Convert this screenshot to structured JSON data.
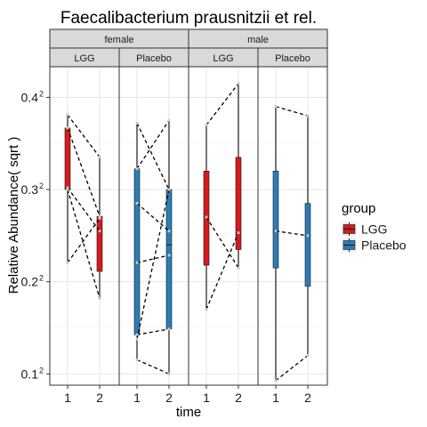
{
  "chart_data": {
    "type": "box",
    "title": "Faecalibacterium prausnitzii et rel.",
    "xlabel": "time",
    "ylabel": "Relative Abundance( sqrt )",
    "y_scale": "sqrt",
    "ylim": [
      0.0077,
      0.1877
    ],
    "y_ticks": [
      0.01,
      0.04,
      0.09,
      0.16
    ],
    "y_tick_labels": [
      {
        "base": "0.1",
        "exp": "2"
      },
      {
        "base": "0.2",
        "exp": "2"
      },
      {
        "base": "0.3",
        "exp": "2"
      },
      {
        "base": "0.4",
        "exp": "2"
      }
    ],
    "x_categories": [
      "1",
      "2"
    ],
    "grid": true,
    "legend": {
      "title": "group",
      "position": "right",
      "items": [
        {
          "label": "LGG",
          "color": "#d7191c"
        },
        {
          "label": "Placebo",
          "color": "#2c7bb6"
        }
      ]
    },
    "facet_top": [
      "female",
      "male"
    ],
    "facet_second": [
      "LGG",
      "Placebo",
      "LGG",
      "Placebo"
    ],
    "panels": [
      {
        "sex": "female",
        "group": "LGG",
        "color": "#d7191c",
        "boxes": [
          {
            "time": "1",
            "min": 0.0487,
            "q1": 0.09,
            "median": 0.0912,
            "q3": 0.1345,
            "max": 0.1452
          },
          {
            "time": "2",
            "min": 0.0331,
            "q1": 0.0446,
            "median": 0.065,
            "q3": 0.0734,
            "max": 0.1124
          }
        ],
        "pairs": [
          [
            0.1452,
            0.1124
          ],
          [
            0.1345,
            0.0734
          ],
          [
            0.0912,
            0.065
          ],
          [
            0.09,
            0.0331
          ],
          [
            0.0487,
            0.0722
          ]
        ]
      },
      {
        "sex": "female",
        "group": "Placebo",
        "color": "#2c7bb6",
        "boxes": [
          {
            "time": "1",
            "min": 0.0133,
            "q1": 0.0203,
            "median": 0.0487,
            "q3": 0.104,
            "max": 0.1384
          },
          {
            "time": "2",
            "min": 0.01,
            "q1": 0.0221,
            "median": 0.0576,
            "q3": 0.09,
            "max": 0.1406
          }
        ],
        "pairs": [
          [
            0.1384,
            0.09
          ],
          [
            0.104,
            0.1406
          ],
          [
            0.0813,
            0.065
          ],
          [
            0.0487,
            0.0523
          ],
          [
            0.0203,
            0.0221
          ],
          [
            0.019,
            0.09
          ],
          [
            0.0133,
            0.01
          ]
        ]
      },
      {
        "sex": "male",
        "group": "LGG",
        "color": "#d7191c",
        "boxes": [
          {
            "time": "1",
            "min": 0.0289,
            "q1": 0.0475,
            "median": 0.0729,
            "q3": 0.1024,
            "max": 0.1369
          },
          {
            "time": "2",
            "min": 0.0462,
            "q1": 0.0552,
            "median": 0.064,
            "q3": 0.1122,
            "max": 0.1722
          }
        ],
        "pairs": [
          [
            0.1369,
            0.1722
          ],
          [
            0.0729,
            0.0462
          ],
          [
            0.0289,
            0.064
          ]
        ]
      },
      {
        "sex": "male",
        "group": "Placebo",
        "color": "#2c7bb6",
        "boxes": [
          {
            "time": "1",
            "min": 0.0086,
            "q1": 0.0462,
            "median": 0.065,
            "q3": 0.1024,
            "max": 0.1521
          },
          {
            "time": "2",
            "min": 0.0144,
            "q1": 0.038,
            "median": 0.0625,
            "q3": 0.0812,
            "max": 0.1444
          }
        ],
        "pairs": [
          [
            0.1521,
            0.1444
          ],
          [
            0.065,
            0.0625
          ],
          [
            0.0086,
            0.0144
          ]
        ]
      }
    ]
  }
}
